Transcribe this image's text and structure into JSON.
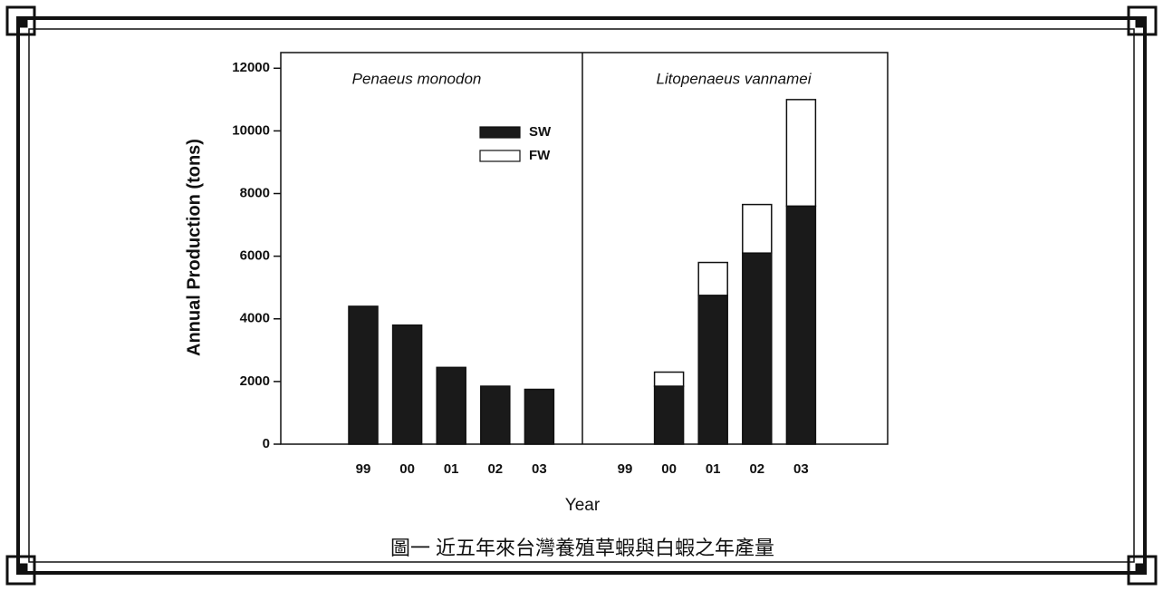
{
  "chart_data": {
    "type": "bar",
    "stacked": true,
    "y_label": "Annual Production (tons)",
    "x_label": "Year",
    "caption": "圖一  近五年來台灣養殖草蝦與白蝦之年產量",
    "ylim": [
      0,
      12500
    ],
    "yticks": [
      0,
      2000,
      4000,
      6000,
      8000,
      10000,
      12000
    ],
    "series": [
      {
        "name": "SW",
        "color": "#1a1a1a"
      },
      {
        "name": "FW",
        "color": "#ffffff"
      }
    ],
    "panels": [
      {
        "title": "Penaeus monodon",
        "categories": [
          "99",
          "00",
          "01",
          "02",
          "03"
        ],
        "series": [
          {
            "values": [
              4400,
              3800,
              2450,
              1850,
              1750
            ]
          },
          {
            "values": [
              0,
              0,
              0,
              0,
              0
            ]
          }
        ]
      },
      {
        "title": "Litopenaeus vannamei",
        "categories": [
          "99",
          "00",
          "01",
          "02",
          "03"
        ],
        "series": [
          {
            "values": [
              0,
              1850,
              4750,
              6100,
              7600
            ]
          },
          {
            "values": [
              0,
              450,
              1050,
              1550,
              3400
            ]
          }
        ]
      }
    ]
  }
}
